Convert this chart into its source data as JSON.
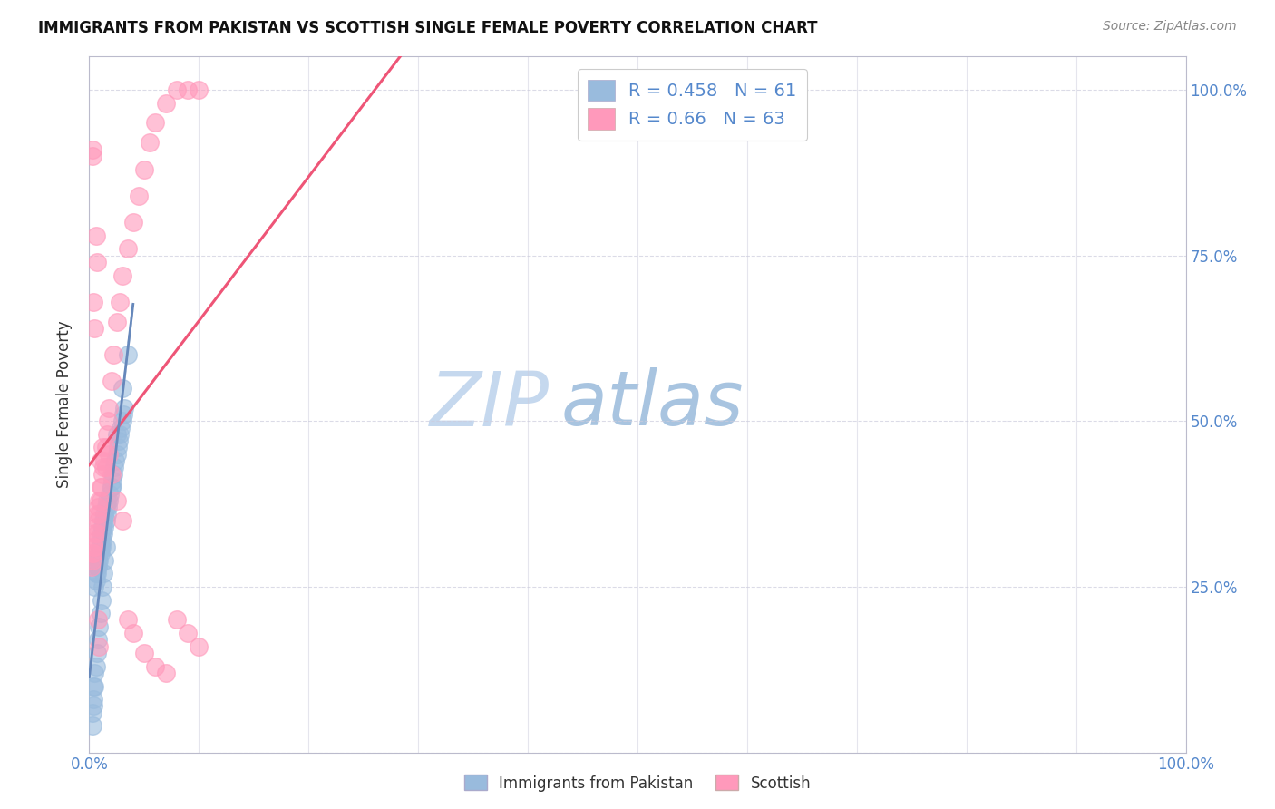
{
  "title": "IMMIGRANTS FROM PAKISTAN VS SCOTTISH SINGLE FEMALE POVERTY CORRELATION CHART",
  "source": "Source: ZipAtlas.com",
  "ylabel": "Single Female Poverty",
  "legend_label1": "Immigrants from Pakistan",
  "legend_label2": "Scottish",
  "R1": 0.458,
  "N1": 61,
  "R2": 0.66,
  "N2": 63,
  "color_blue": "#99BBDD",
  "color_pink": "#FF99BB",
  "color_trendline_blue": "#6688BB",
  "color_trendline_pink": "#EE5577",
  "color_dashed": "#AABBDD",
  "watermark_zip_color": "#C8D8EE",
  "watermark_atlas_color": "#B0CCE8",
  "background": "#FFFFFF",
  "xlim": [
    0.0,
    1.0
  ],
  "ylim": [
    0.0,
    1.05
  ],
  "xtick_positions": [
    0.0,
    0.1,
    0.2,
    0.3,
    0.4,
    0.5,
    0.6,
    0.7,
    0.8,
    0.9,
    1.0
  ],
  "ytick_positions": [
    0.0,
    0.25,
    0.5,
    0.75,
    1.0
  ],
  "ytick_labels_right": [
    "",
    "25.0%",
    "50.0%",
    "75.0%",
    "100.0%"
  ],
  "tick_label_color": "#5588CC",
  "pakistan_x": [
    0.005,
    0.006,
    0.006,
    0.007,
    0.007,
    0.008,
    0.008,
    0.009,
    0.009,
    0.01,
    0.01,
    0.01,
    0.011,
    0.011,
    0.012,
    0.012,
    0.013,
    0.013,
    0.014,
    0.014,
    0.015,
    0.015,
    0.016,
    0.016,
    0.017,
    0.018,
    0.019,
    0.02,
    0.021,
    0.022,
    0.023,
    0.024,
    0.025,
    0.026,
    0.027,
    0.028,
    0.029,
    0.03,
    0.031,
    0.032,
    0.003,
    0.003,
    0.004,
    0.004,
    0.004,
    0.005,
    0.005,
    0.006,
    0.007,
    0.008,
    0.009,
    0.01,
    0.011,
    0.012,
    0.013,
    0.014,
    0.015,
    0.02,
    0.025,
    0.03,
    0.035
  ],
  "pakistan_y": [
    0.25,
    0.26,
    0.27,
    0.27,
    0.28,
    0.28,
    0.29,
    0.29,
    0.3,
    0.3,
    0.31,
    0.32,
    0.31,
    0.33,
    0.32,
    0.34,
    0.33,
    0.35,
    0.34,
    0.36,
    0.35,
    0.37,
    0.36,
    0.38,
    0.37,
    0.38,
    0.39,
    0.4,
    0.41,
    0.42,
    0.43,
    0.44,
    0.45,
    0.46,
    0.47,
    0.48,
    0.49,
    0.5,
    0.51,
    0.52,
    0.04,
    0.06,
    0.07,
    0.08,
    0.1,
    0.1,
    0.12,
    0.13,
    0.15,
    0.17,
    0.19,
    0.21,
    0.23,
    0.25,
    0.27,
    0.29,
    0.31,
    0.4,
    0.48,
    0.55,
    0.6
  ],
  "scottish_x": [
    0.002,
    0.003,
    0.003,
    0.004,
    0.004,
    0.005,
    0.005,
    0.006,
    0.006,
    0.007,
    0.007,
    0.008,
    0.008,
    0.009,
    0.009,
    0.01,
    0.01,
    0.011,
    0.012,
    0.013,
    0.014,
    0.015,
    0.016,
    0.017,
    0.018,
    0.02,
    0.022,
    0.025,
    0.028,
    0.03,
    0.035,
    0.04,
    0.045,
    0.05,
    0.055,
    0.06,
    0.07,
    0.08,
    0.09,
    0.1,
    0.003,
    0.003,
    0.004,
    0.005,
    0.006,
    0.007,
    0.008,
    0.009,
    0.01,
    0.012,
    0.015,
    0.018,
    0.02,
    0.025,
    0.03,
    0.035,
    0.04,
    0.05,
    0.06,
    0.07,
    0.08,
    0.09,
    0.1
  ],
  "scottish_y": [
    0.28,
    0.29,
    0.3,
    0.3,
    0.31,
    0.31,
    0.33,
    0.32,
    0.34,
    0.33,
    0.36,
    0.35,
    0.37,
    0.36,
    0.38,
    0.38,
    0.4,
    0.4,
    0.42,
    0.43,
    0.44,
    0.46,
    0.48,
    0.5,
    0.52,
    0.56,
    0.6,
    0.65,
    0.68,
    0.72,
    0.76,
    0.8,
    0.84,
    0.88,
    0.92,
    0.95,
    0.98,
    1.0,
    1.0,
    1.0,
    0.9,
    0.91,
    0.68,
    0.64,
    0.78,
    0.74,
    0.2,
    0.16,
    0.44,
    0.46,
    0.43,
    0.45,
    0.42,
    0.38,
    0.35,
    0.2,
    0.18,
    0.15,
    0.13,
    0.12,
    0.2,
    0.18,
    0.16
  ]
}
